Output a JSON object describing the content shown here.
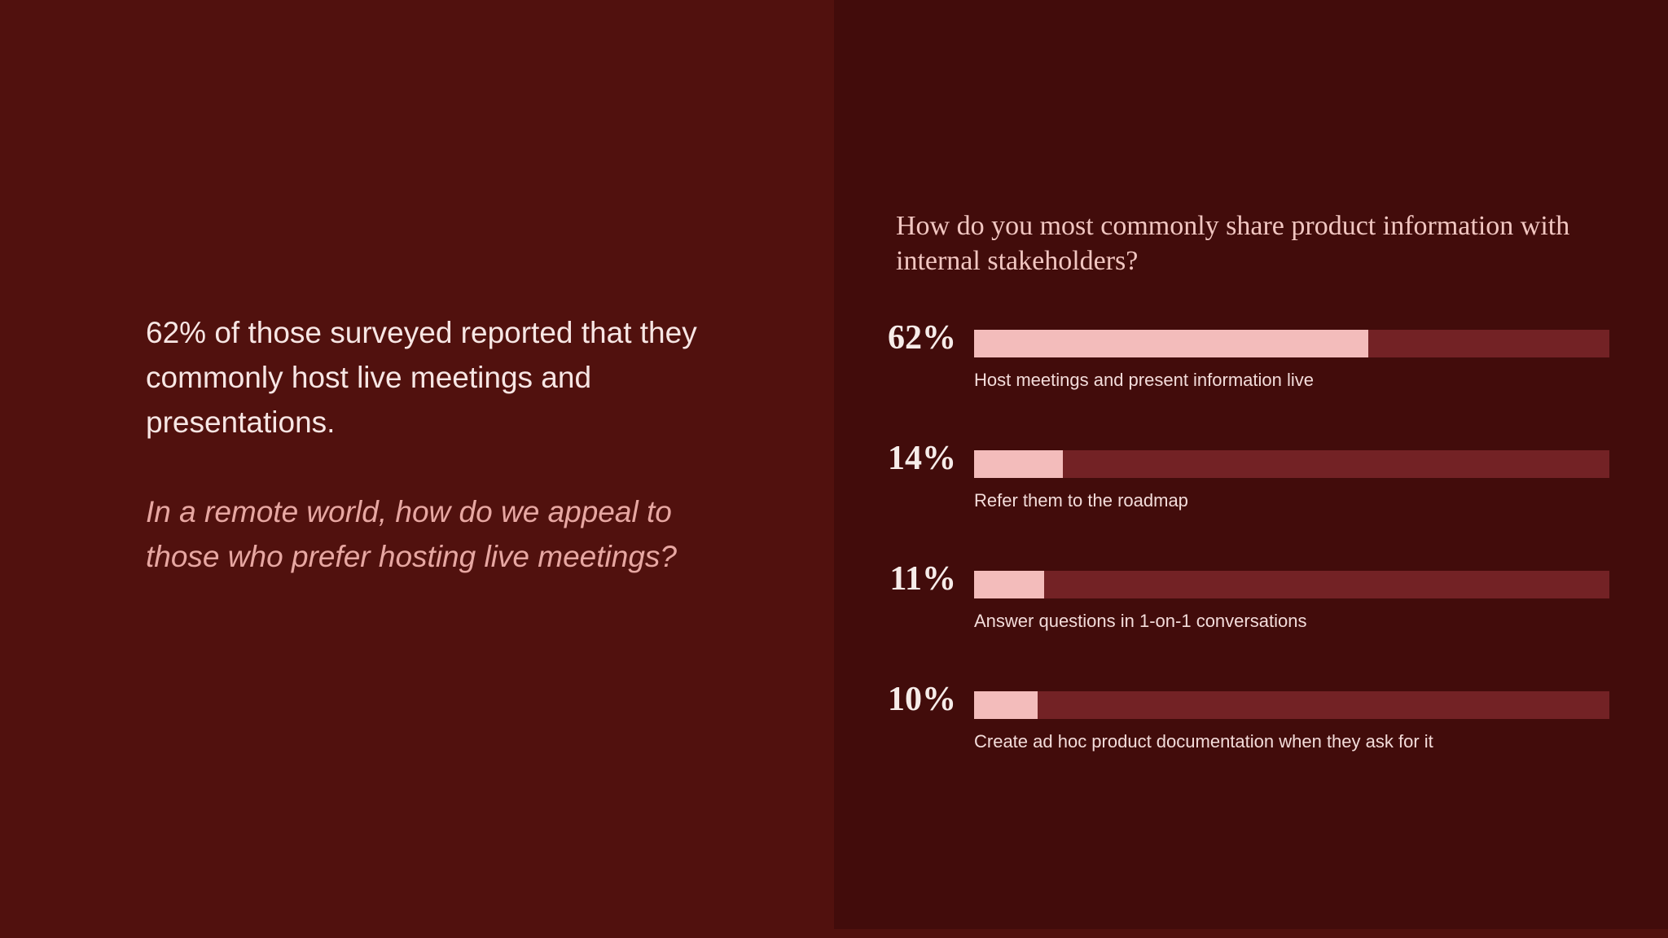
{
  "headline": "62% of those surveyed reported that they commonly host live meetings and presentations.",
  "question": "In a remote world, how do we appeal to those who prefer hosting live meetings?",
  "colors": {
    "left_background": "#51110e",
    "right_background": "#420c0b",
    "bar_fill": "#f3bcbb",
    "bar_track": "#732225",
    "question_text": "#e7a7a2"
  },
  "chart_data": {
    "type": "bar",
    "orientation": "horizontal",
    "title": "How do you most commonly share product information with internal stakeholders?",
    "xlim": [
      0,
      100
    ],
    "categories": [
      "Host meetings and present information live",
      "Refer them to the roadmap",
      "Answer questions in 1-on-1 conversations",
      "Create ad hoc product documentation when they ask for it"
    ],
    "values": [
      62,
      14,
      11,
      10
    ],
    "value_labels": [
      "62%",
      "14%",
      "11%",
      "10%"
    ]
  }
}
